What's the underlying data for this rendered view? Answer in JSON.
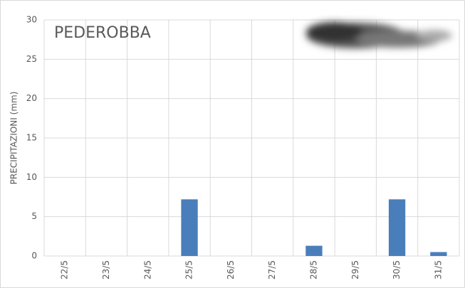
{
  "chart_data": {
    "type": "bar",
    "title": "PEDEROBBA",
    "y_label": "PRECIPITAZIONI (mm)",
    "categories": [
      "22/5",
      "23/5",
      "24/5",
      "25/5",
      "26/5",
      "27/5",
      "28/5",
      "29/5",
      "30/5",
      "31/5"
    ],
    "values": [
      0,
      0,
      0,
      7.2,
      0,
      0,
      1.3,
      0,
      7.2,
      0.5
    ],
    "color": "#4a7ebb",
    "ylim": [
      0,
      30
    ],
    "yticks": [
      0,
      5,
      10,
      15,
      20,
      25,
      30
    ],
    "grid": true
  }
}
